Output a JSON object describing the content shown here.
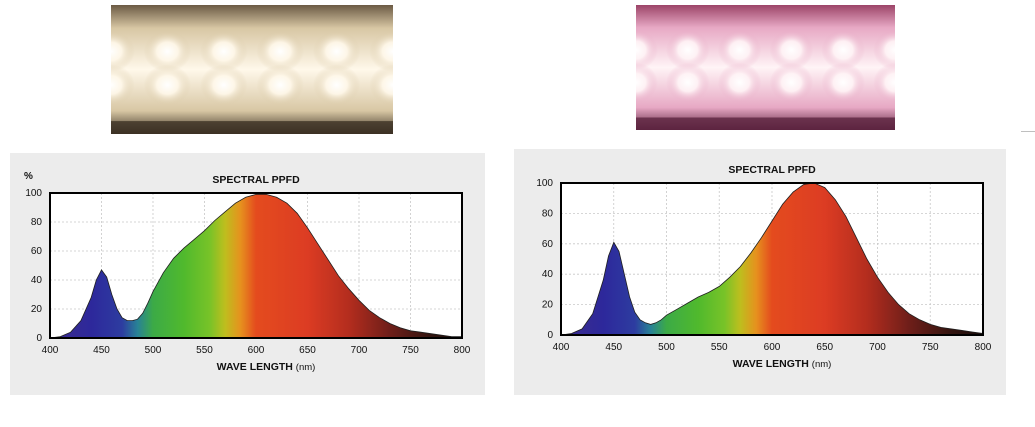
{
  "photos": [
    {
      "name": "white-led-strip-photo",
      "base": "#6b5a44",
      "glow": "#fff8ea",
      "tint": "#d8c7a4",
      "edge": "#3c3124"
    },
    {
      "name": "pink-led-strip-photo",
      "base": "#9c4468",
      "glow": "#fff4f6",
      "tint": "#e7a8c4",
      "edge": "#5d2440"
    }
  ],
  "chart_data": [
    {
      "type": "area",
      "title": "SPECTRAL PPFD",
      "xlabel": "WAVE LENGTH",
      "xlabel_unit": "(nm)",
      "ylabel": "%",
      "xlim": [
        400,
        800
      ],
      "ylim": [
        0,
        100
      ],
      "xticks": [
        "400",
        "450",
        "500",
        "550",
        "600",
        "650",
        "700",
        "750",
        "800"
      ],
      "yticks": [
        "0",
        "20",
        "40",
        "60",
        "80",
        "100"
      ],
      "grid": true,
      "series": [
        {
          "x": [
            400,
            410,
            420,
            430,
            440,
            445,
            450,
            455,
            460,
            465,
            470,
            475,
            480,
            485,
            490,
            495,
            500,
            510,
            520,
            530,
            540,
            550,
            560,
            570,
            580,
            590,
            600,
            610,
            620,
            630,
            640,
            650,
            660,
            670,
            680,
            690,
            700,
            710,
            720,
            730,
            740,
            750,
            760,
            770,
            780,
            790,
            800
          ],
          "values": [
            0,
            1,
            4,
            12,
            28,
            40,
            47,
            42,
            30,
            20,
            14,
            12,
            12,
            13,
            17,
            24,
            32,
            45,
            55,
            62,
            68,
            74,
            81,
            87,
            93,
            97,
            99,
            99,
            97,
            93,
            86,
            76,
            65,
            54,
            43,
            34,
            26,
            19,
            14,
            10,
            7,
            5,
            4,
            3,
            2,
            1,
            1
          ]
        }
      ]
    },
    {
      "type": "area",
      "title": "SPECTRAL PPFD",
      "xlabel": "WAVE LENGTH",
      "xlabel_unit": "(nm)",
      "ylabel": "",
      "xlim": [
        400,
        800
      ],
      "ylim": [
        0,
        100
      ],
      "xticks": [
        "400",
        "450",
        "500",
        "550",
        "600",
        "650",
        "700",
        "750",
        "800"
      ],
      "yticks": [
        "0",
        "20",
        "40",
        "60",
        "80",
        "100"
      ],
      "grid": true,
      "series": [
        {
          "x": [
            400,
            410,
            420,
            430,
            440,
            445,
            450,
            455,
            460,
            465,
            470,
            475,
            480,
            485,
            490,
            495,
            500,
            510,
            520,
            530,
            540,
            550,
            560,
            570,
            580,
            590,
            600,
            610,
            620,
            630,
            640,
            650,
            660,
            670,
            680,
            690,
            700,
            710,
            720,
            730,
            740,
            750,
            760,
            770,
            780,
            790,
            800
          ],
          "values": [
            0,
            1,
            4,
            14,
            36,
            52,
            61,
            55,
            40,
            25,
            15,
            10,
            8,
            7,
            8,
            10,
            13,
            17,
            21,
            25,
            28,
            32,
            38,
            45,
            54,
            64,
            75,
            86,
            94,
            99,
            100,
            97,
            89,
            78,
            64,
            50,
            38,
            28,
            20,
            14,
            10,
            7,
            5,
            4,
            3,
            2,
            1
          ]
        }
      ]
    }
  ]
}
